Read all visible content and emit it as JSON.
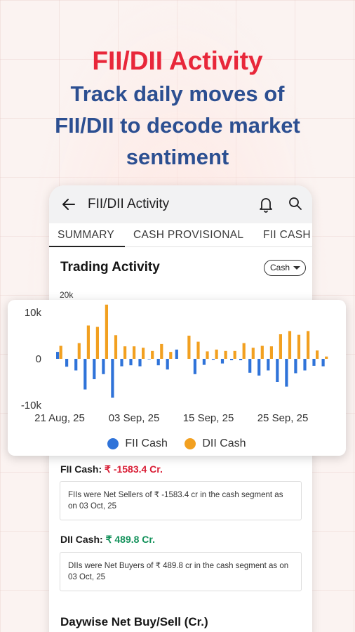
{
  "hero": {
    "title": "FII/DII Activity",
    "subtitle_line1": "Track daily moves of",
    "subtitle_line2": "FII/DII to decode market",
    "subtitle_line3": "sentiment"
  },
  "app_bar": {
    "title": "FII/DII Activity",
    "icons": [
      "back-arrow-icon",
      "bell-icon",
      "search-icon"
    ]
  },
  "tabs": [
    {
      "label": "SUMMARY",
      "active": true
    },
    {
      "label": "CASH PROVISIONAL",
      "active": false
    },
    {
      "label": "FII CASH",
      "active": false
    }
  ],
  "trading": {
    "title": "Trading Activity",
    "dropdown_value": "Cash",
    "axis_top_label": "20k"
  },
  "fii": {
    "label": "FII Cash:",
    "value": "₹ -1583.4 Cr.",
    "note": "FIIs were Net Sellers of ₹ -1583.4 cr in the cash segment as on 03 Oct, 25"
  },
  "dii": {
    "label": "DII Cash:",
    "value": "₹ 489.8 Cr.",
    "note": "DIIs were Net Buyers of ₹ 489.8 cr in the cash segment as on 03 Oct, 25"
  },
  "daywise_title": "Daywise Net Buy/Sell (Cr.)",
  "colors": {
    "fii": "#2f73d9",
    "dii": "#f2a020",
    "accent_red": "#e8273a",
    "brand_blue": "#2c4f91"
  },
  "chart_data": {
    "type": "bar",
    "y_ticks": [
      "10k",
      "0",
      "-10k"
    ],
    "ylim": [
      -10000,
      10000
    ],
    "x_tick_labels": [
      "21 Aug, 25",
      "03 Sep, 25",
      "15 Sep, 25",
      "25 Sep, 25"
    ],
    "series": [
      {
        "name": "FII Cash",
        "values": [
          1500,
          -1700,
          -2500,
          -6600,
          -4400,
          -3300,
          -8400,
          -1600,
          -1400,
          -1600,
          -100,
          -1400,
          -2300,
          2000,
          0,
          -3300,
          -1300,
          -200,
          -1000,
          -300,
          -300,
          -3000,
          -3600,
          -2500,
          -5000,
          -6000,
          -3100,
          -2500,
          -1500,
          -1600
        ]
      },
      {
        "name": "DII Cash",
        "values": [
          2800,
          0,
          3400,
          7200,
          6900,
          11700,
          5100,
          2700,
          2700,
          2400,
          1700,
          3200,
          1500,
          0,
          5000,
          3700,
          1600,
          2000,
          1700,
          1700,
          3400,
          2400,
          2800,
          2700,
          5300,
          6000,
          5200,
          6000,
          1800,
          500
        ]
      }
    ],
    "legend_position": "bottom-center"
  }
}
